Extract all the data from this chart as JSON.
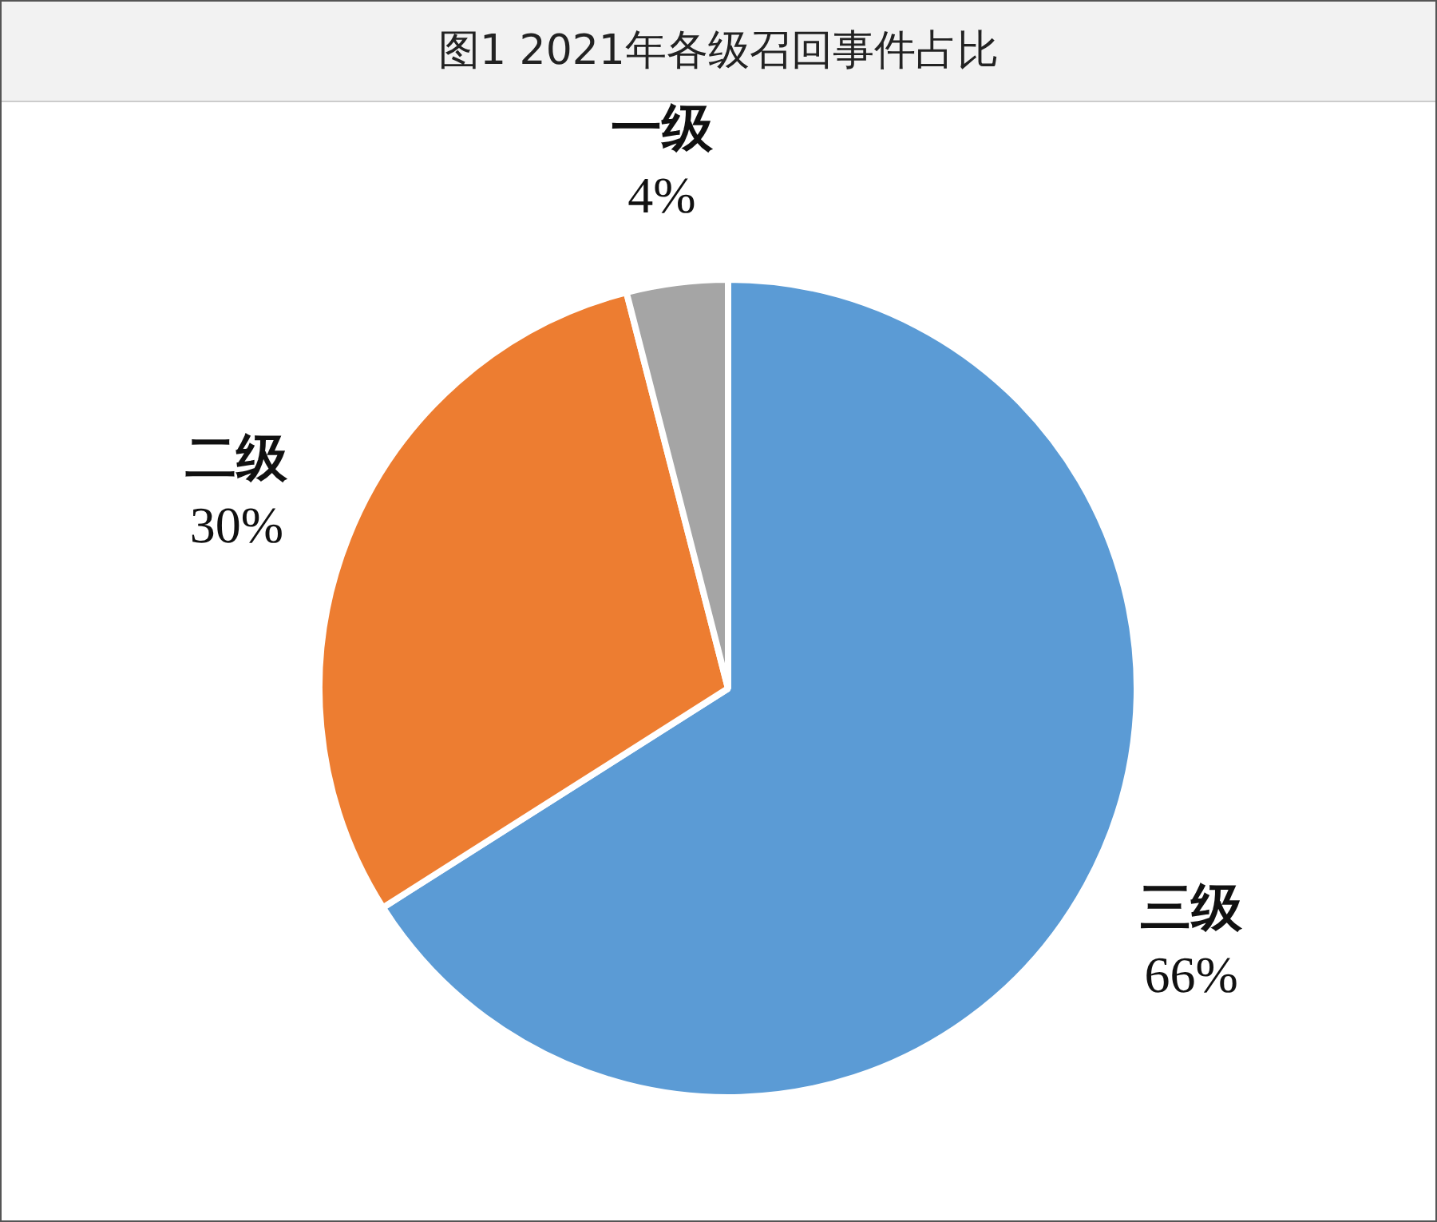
{
  "chart_data": {
    "type": "pie",
    "title": "图1 2021年各级召回事件占比",
    "categories": [
      "三级",
      "二级",
      "一级"
    ],
    "values": [
      66,
      30,
      4
    ],
    "value_labels": [
      "66%",
      "30%",
      "4%"
    ],
    "colors": [
      "#5b9bd5",
      "#ed7d31",
      "#a5a5a5"
    ],
    "legend": false
  }
}
